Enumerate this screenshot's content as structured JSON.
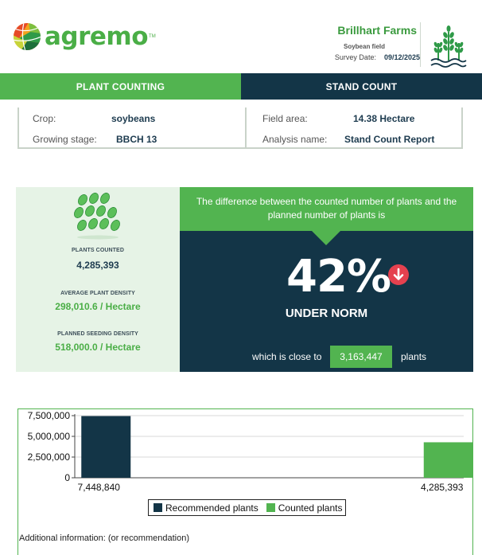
{
  "header": {
    "logo_text": "agremo",
    "farm_name": "Brillhart Farms",
    "field_name": "Soybean field",
    "survey_date_label": "Survey Date:",
    "survey_date": "09/12/2025"
  },
  "tabs": {
    "left": "PLANT COUNTING",
    "right": "STAND COUNT"
  },
  "info": {
    "crop_label": "Crop:",
    "crop_value": "soybeans",
    "stage_label": "Growing stage:",
    "stage_value": "BBCH 13",
    "area_label": "Field area:",
    "area_value": "14.38 Hectare",
    "analysis_label": "Analysis name:",
    "analysis_value": "Stand Count Report"
  },
  "stats": {
    "plants_counted_label": "PLANTS COUNTED",
    "plants_counted": "4,285,393",
    "avg_density_label": "AVERAGE PLANT DENSITY",
    "avg_density": "298,010.6 / Hectare",
    "planned_density_label": "PLANNED SEEDING DENSITY",
    "planned_density": "518,000.0 / Hectare"
  },
  "difference": {
    "description": "The difference between the counted number of plants and the planned number of plants is",
    "percent": "42%",
    "status": "UNDER NORM",
    "close_to_label": "which is close to",
    "close_to_value": "3,163,447",
    "plants_label": "plants"
  },
  "colors": {
    "green": "#52b450",
    "dark": "#133547",
    "alert": "#e5414f"
  },
  "chart_data": {
    "type": "bar",
    "categories": [
      "7,448,840",
      "4,285,393"
    ],
    "series": [
      {
        "name": "Recommended plants",
        "values": [
          7448840,
          null
        ],
        "color": "#133547"
      },
      {
        "name": "Counted plants",
        "values": [
          null,
          4285393
        ],
        "color": "#52b450"
      }
    ],
    "ylim": [
      0,
      7500000
    ],
    "yticks": [
      "0",
      "2,500,000",
      "5,000,000",
      "7,500,000"
    ],
    "grid": true,
    "legend": "bottom"
  },
  "footer": {
    "additional_info": "Additional information: (or recommendation)"
  }
}
